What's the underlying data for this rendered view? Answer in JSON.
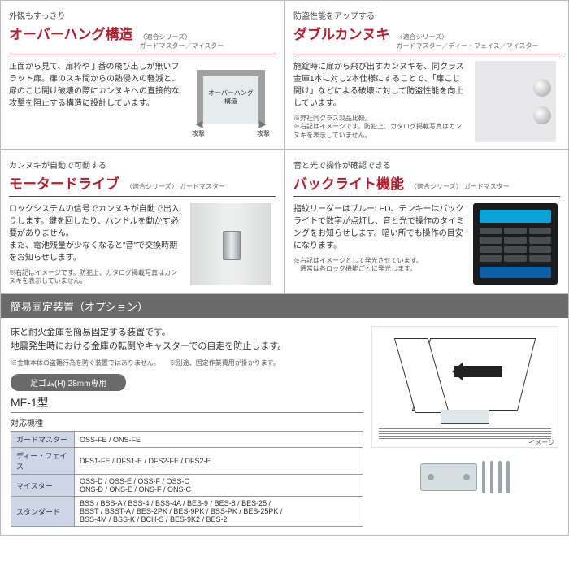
{
  "features": [
    {
      "subtitle": "外観もすっきり",
      "title": "オーバーハング構造",
      "series_label": "〈適合シリーズ〉",
      "series": "ガードマスター／マイスター",
      "desc": "正面から見て、扉枠や丁番の飛び出しが無いフラット扉。扉のスキ間からの熱侵入の軽減と、扉のこじ開け破壊の際にカンヌキへの直接的な攻撃を阻止する構造に設計しています。",
      "illus_label": "オーバーハング\n構造",
      "attack_label": "攻撃"
    },
    {
      "subtitle": "防盗性能をアップする",
      "title": "ダブルカンヌキ",
      "series_label": "〈適合シリーズ〉",
      "series": "ガードマスター／ディー・フェイス／マイスター",
      "desc": "施錠時に扉から飛び出すカンヌキを、同クラス金庫1本に対し2本仕様にすることで、「扉こじ開け」などによる破壊に対して防盗性能を向上しています。",
      "note": "※弊社同クラス製品比較。\n※右記はイメージです。防犯上、カタログ掲載写真はカンヌキを表示していません。"
    },
    {
      "subtitle": "カンヌキが自動で可動する",
      "title": "モータードライブ",
      "series_label": "〈適合シリーズ〉",
      "series": "ガードマスター",
      "desc": "ロックシステムの信号でカンヌキが自動で出入りします。鍵を回したり、ハンドルを動かす必要がありません。\nまた、電池残量が少なくなると\"音\"で交換時期をお知らせします。",
      "note": "※右記はイメージです。防犯上、カタログ掲載写真はカンヌキを表示していません。"
    },
    {
      "subtitle": "音と光で操作が確認できる",
      "title": "バックライト機能",
      "series_label": "〈適合シリーズ〉",
      "series": "ガードマスター",
      "desc": "指紋リーダーはブルーLED、テンキーはバックライトで数字が点灯し、音と光で操作のタイミングをお知らせします。暗い所でも操作の目安になります。",
      "note": "※右記はイメージとして発光させています。\n　通常は各ロック機能ごとに発光します。"
    }
  ],
  "bottom": {
    "header": "簡易固定装置（オプション）",
    "line1": "床と耐火金庫を簡易固定する装置です。",
    "line2": "地震発生時における金庫の転倒やキャスターでの自走を防止します。",
    "note": "※金庫本体の盗難行為を防ぐ装置ではありません。　　※別途、固定作業費用が掛かります。",
    "pill": "足ゴム(H) 28mm専用",
    "model": "MF-1型",
    "compat_label": "対応機種",
    "rows": [
      {
        "h": "ガードマスター",
        "v": "OSS-FE / ONS-FE"
      },
      {
        "h": "ディー・フェイス",
        "v": "DFS1-FE / DFS1-E / DFS2-FE / DFS2-E"
      },
      {
        "h": "マイスター",
        "v": "OSS-D / OSS-E / OSS-F / OSS-C\nONS-D / ONS-E / ONS-F / ONS-C"
      },
      {
        "h": "スタンダード",
        "v": "BSS / BSS-A / BSS-4 / BSS-4A / BES-9 / BES-8 / BES-25 /\nBSST / BSST-A / BES-2PK / BES-9PK / BSS-PK / BES-25PK /\nBSS-4M / BSS-K / BCH-S / BES-9K2 / BES-2"
      }
    ],
    "img_label": "イメージ"
  },
  "colors": {
    "accent": "#b81c2c",
    "header_bg": "#6a6a6a",
    "table_header_bg": "#cdd5e6",
    "border": "#bbbbbb"
  }
}
